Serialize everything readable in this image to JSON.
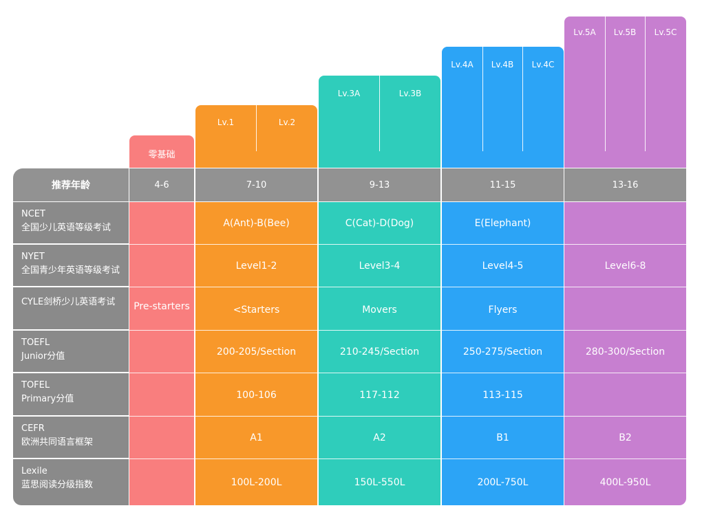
{
  "colors": {
    "pink": "#f97e7e",
    "orange": "#f8982a",
    "teal": "#2fcdbb",
    "blue": "#2ca4f6",
    "purple": "#c77fd0",
    "gray_header": "#929292",
    "gray_label": "#8a8a8a"
  },
  "levels": {
    "zero": "零基础",
    "orange": [
      "Lv.1",
      "Lv.2"
    ],
    "teal": [
      "Lv.3A",
      "Lv.3B"
    ],
    "blue": [
      "Lv.4A",
      "Lv.4B",
      "Lv.4C"
    ],
    "purple": [
      "Lv.5A",
      "Lv.5B",
      "Lv.5C"
    ]
  },
  "header": {
    "label": "推荐年龄",
    "ages": [
      "4-6",
      "7-10",
      "9-13",
      "11-15",
      "13-16"
    ]
  },
  "rows": [
    {
      "title": "NCET",
      "subtitle": "全国少儿英语等级考试",
      "values": [
        "",
        "A(Ant)-B(Bee)",
        "C(Cat)-D(Dog)",
        "E(Elephant)",
        ""
      ]
    },
    {
      "title": "NYET",
      "subtitle": "全国青少年英语等级考试",
      "values": [
        "",
        "Level1-2",
        "Level3-4",
        "Level4-5",
        "Level6-8"
      ]
    },
    {
      "title": "CYLE剑桥少儿英语考试",
      "subtitle": "",
      "values": [
        "Pre-starters",
        "<Starters",
        "Movers",
        "Flyers",
        ""
      ]
    },
    {
      "title": "TOEFL",
      "subtitle": "Junior分值",
      "values": [
        "",
        "200-205/Section",
        "210-245/Section",
        "250-275/Section",
        "280-300/Section"
      ]
    },
    {
      "title": "TOFEL",
      "subtitle": "Primary分值",
      "values": [
        "",
        "100-106",
        "117-112",
        "113-115",
        ""
      ]
    },
    {
      "title": "CEFR",
      "subtitle": "欧洲共同语言框架",
      "values": [
        "",
        "A1",
        "A2",
        "B1",
        "B2"
      ]
    },
    {
      "title": "Lexile",
      "subtitle": "蓝思阅读分级指数",
      "values": [
        "",
        "100L-200L",
        "150L-550L",
        "200L-750L",
        "400L-950L"
      ]
    }
  ]
}
